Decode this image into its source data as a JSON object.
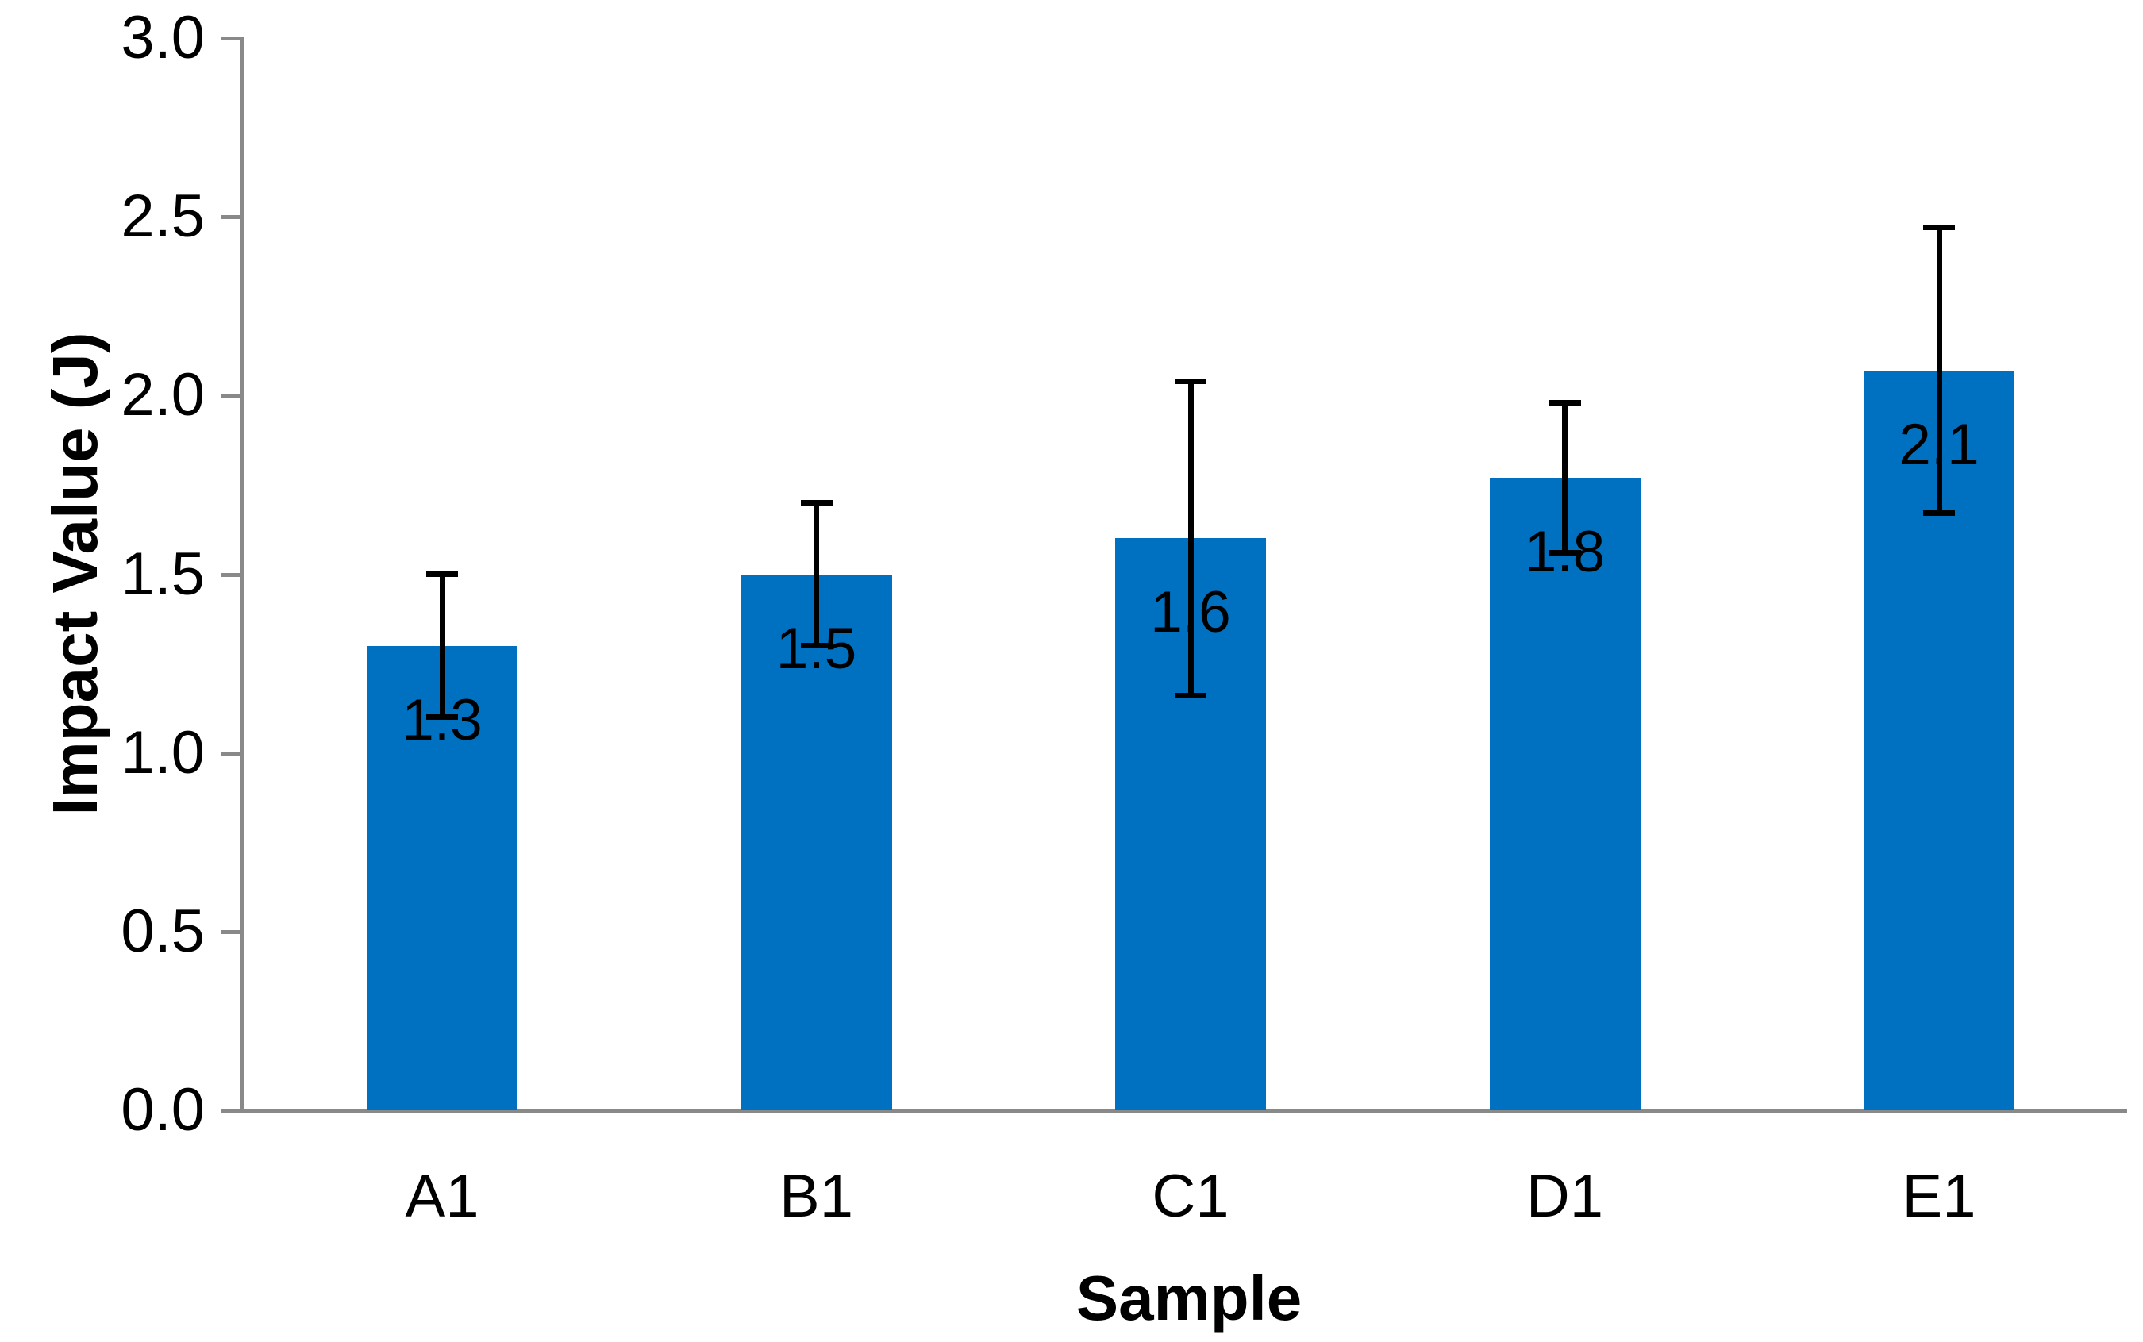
{
  "chart_data": {
    "type": "bar",
    "title": "",
    "xlabel": "Sample",
    "ylabel": "Impact Value (J)",
    "categories": [
      "A1",
      "B1",
      "C1",
      "D1",
      "E1"
    ],
    "values": [
      1.3,
      1.5,
      1.6,
      1.77,
      2.07
    ],
    "bar_labels": [
      "1.3",
      "1.5",
      "1.6",
      "1.8",
      "2.1"
    ],
    "errors": [
      0.2,
      0.2,
      0.44,
      0.21,
      0.4
    ],
    "ylim": [
      0.0,
      3.0
    ],
    "ytick_step": 0.5,
    "ytick_labels": [
      "0.0",
      "0.5",
      "1.0",
      "1.5",
      "2.0",
      "2.5",
      "3.0"
    ],
    "grid": false,
    "legend_position": "none",
    "bar_color": "#0070C0",
    "axis_color": "#898989",
    "error_bar_color": "#000000",
    "text_color": "#000000"
  }
}
